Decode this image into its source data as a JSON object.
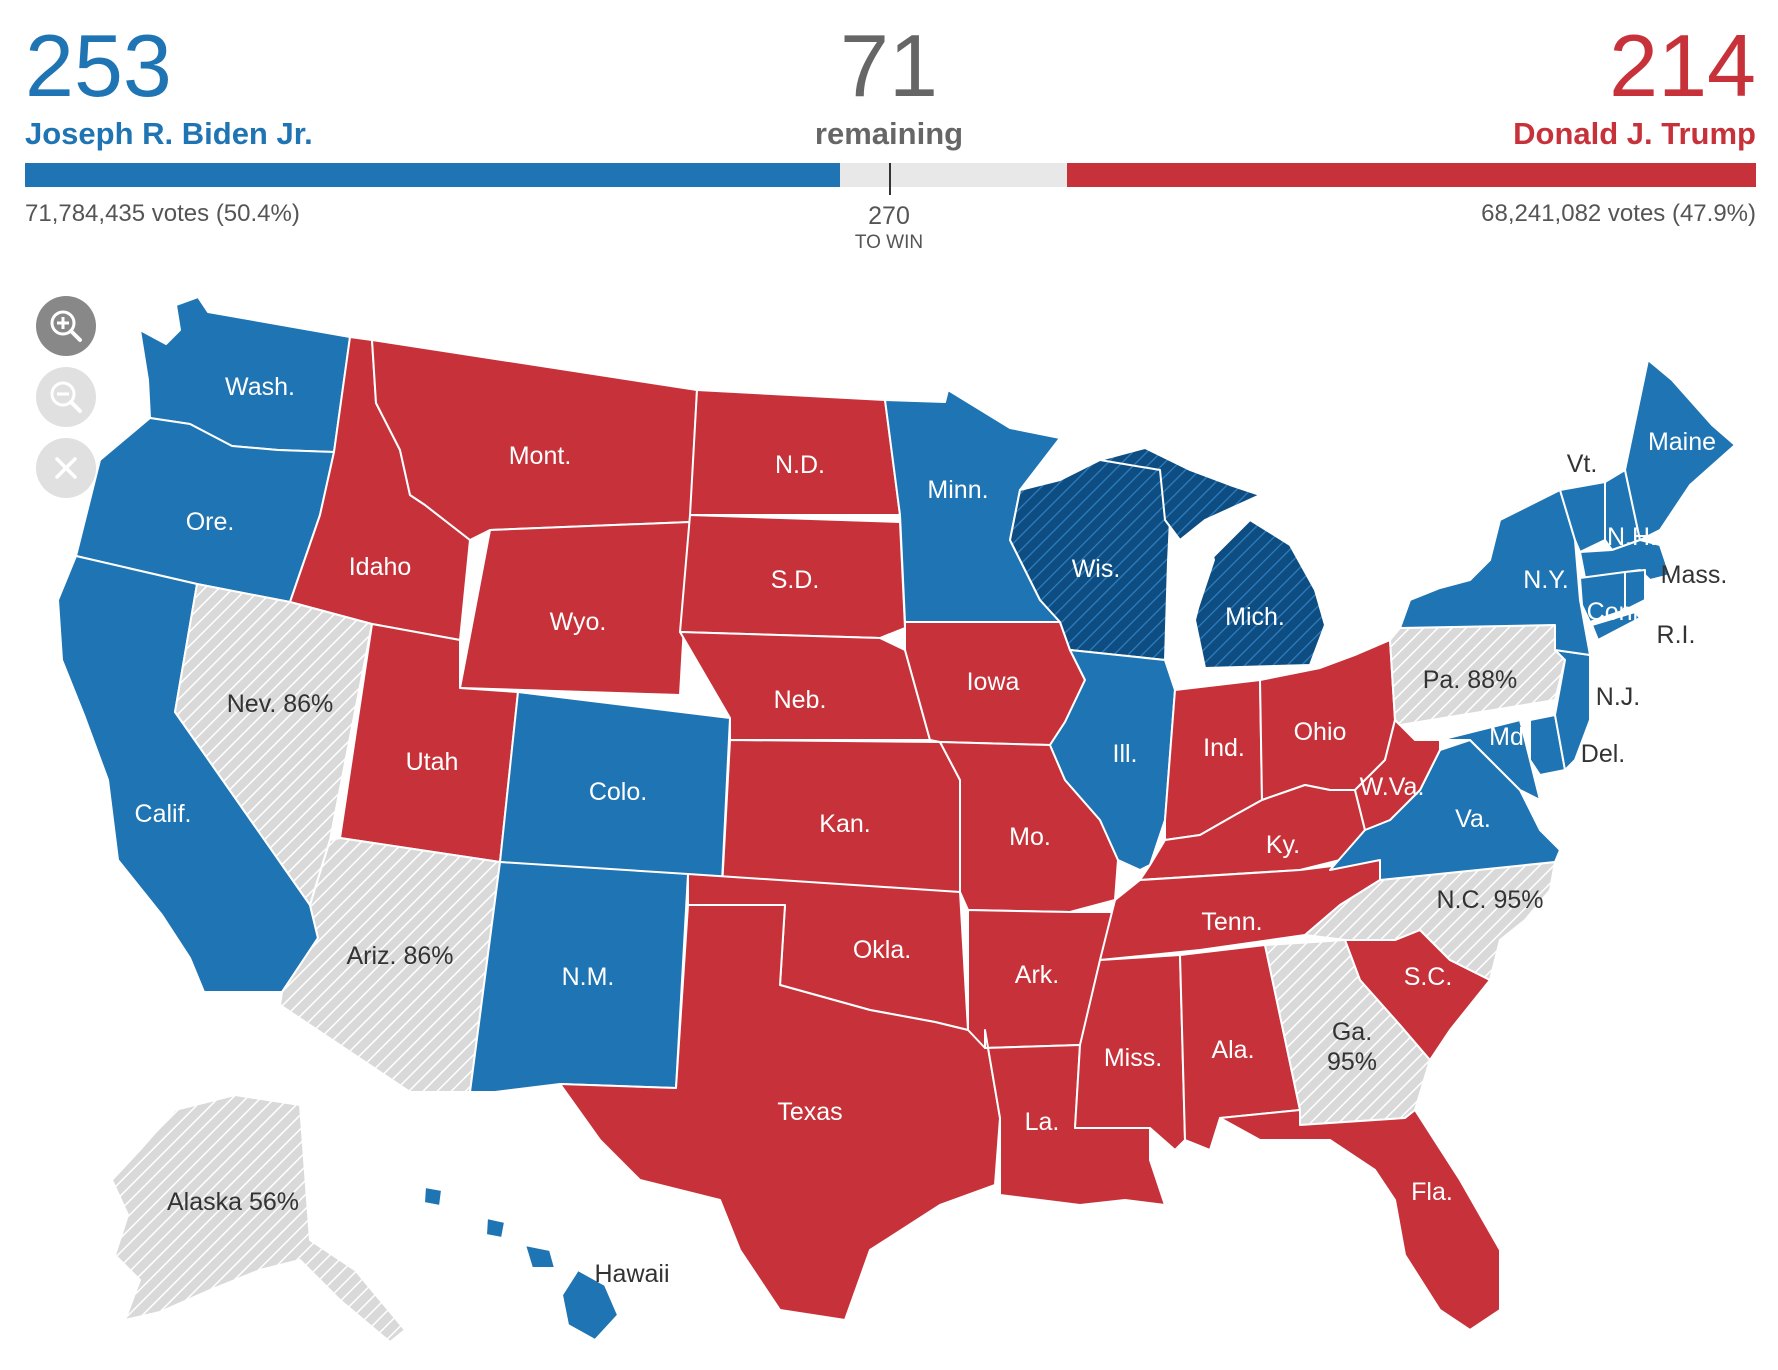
{
  "colors": {
    "biden": "#1f74b3",
    "biden_flip": "#0e4d82",
    "trump": "#c7323a",
    "undecided": "#d9d9d9",
    "remaining_bar": "#e8e8e8"
  },
  "summary": {
    "biden": {
      "electoral_votes": "253",
      "name": "Joseph R. Biden Jr.",
      "popular_votes": "71,784,435 votes (50.4%)"
    },
    "remaining": {
      "count": "71",
      "label": "remaining"
    },
    "trump": {
      "electoral_votes": "214",
      "name": "Donald J. Trump",
      "popular_votes": "68,241,082 votes (47.9%)"
    },
    "threshold": {
      "value": "270",
      "label": "TO WIN"
    }
  },
  "controls": [
    {
      "id": "zoom-in",
      "icon": "zoom-in-icon"
    },
    {
      "id": "zoom-out",
      "icon": "zoom-out-icon"
    },
    {
      "id": "reset",
      "icon": "close-icon"
    }
  ],
  "map": {
    "legend_states": {
      "biden": [
        "Wash.",
        "Ore.",
        "Calif.",
        "Colo.",
        "N.M.",
        "Minn.",
        "Wis.",
        "Mich.",
        "Ill.",
        "Va.",
        "Md.",
        "Del.",
        "N.J.",
        "N.Y.",
        "Conn.",
        "R.I.",
        "Mass.",
        "Vt.",
        "N.H.",
        "Maine",
        "Hawaii"
      ],
      "trump": [
        "Mont.",
        "Idaho",
        "Wyo.",
        "Utah",
        "N.D.",
        "S.D.",
        "Neb.",
        "Kan.",
        "Okla.",
        "Texas",
        "Iowa",
        "Mo.",
        "Ark.",
        "La.",
        "Miss.",
        "Ala.",
        "Tenn.",
        "Ky.",
        "Ind.",
        "Ohio",
        "W.Va.",
        "S.C.",
        "Fla."
      ],
      "undecided": [
        "Nev.",
        "Ariz.",
        "Alaska",
        "Pa.",
        "N.C.",
        "Ga."
      ]
    },
    "labels": {
      "wash": "Wash.",
      "ore": "Ore.",
      "calif": "Calif.",
      "idaho": "Idaho",
      "mont": "Mont.",
      "wyo": "Wyo.",
      "nev": "Nev. 86%",
      "utah": "Utah",
      "colo": "Colo.",
      "ariz": "Ariz. 86%",
      "nm": "N.M.",
      "nd": "N.D.",
      "sd": "S.D.",
      "neb": "Neb.",
      "kan": "Kan.",
      "okla": "Okla.",
      "texas": "Texas",
      "minn": "Minn.",
      "iowa": "Iowa",
      "mo": "Mo.",
      "ark": "Ark.",
      "la": "La.",
      "wis": "Wis.",
      "ill": "Ill.",
      "mich": "Mich.",
      "ind": "Ind.",
      "ohio": "Ohio",
      "ky": "Ky.",
      "tenn": "Tenn.",
      "miss": "Miss.",
      "ala": "Ala.",
      "ga_name": "Ga.",
      "ga_pct": "95%",
      "fla": "Fla.",
      "sc": "S.C.",
      "nc": "N.C. 95%",
      "va": "Va.",
      "wva": "W.Va.",
      "md": "Md.",
      "del": "Del.",
      "nj": "N.J.",
      "pa": "Pa. 88%",
      "ny": "N.Y.",
      "vt": "Vt.",
      "nh": "N.H.",
      "maine": "Maine",
      "mass": "Mass.",
      "conn": "Conn.",
      "ri": "R.I.",
      "alaska": "Alaska 56%",
      "hawaii": "Hawaii"
    }
  }
}
